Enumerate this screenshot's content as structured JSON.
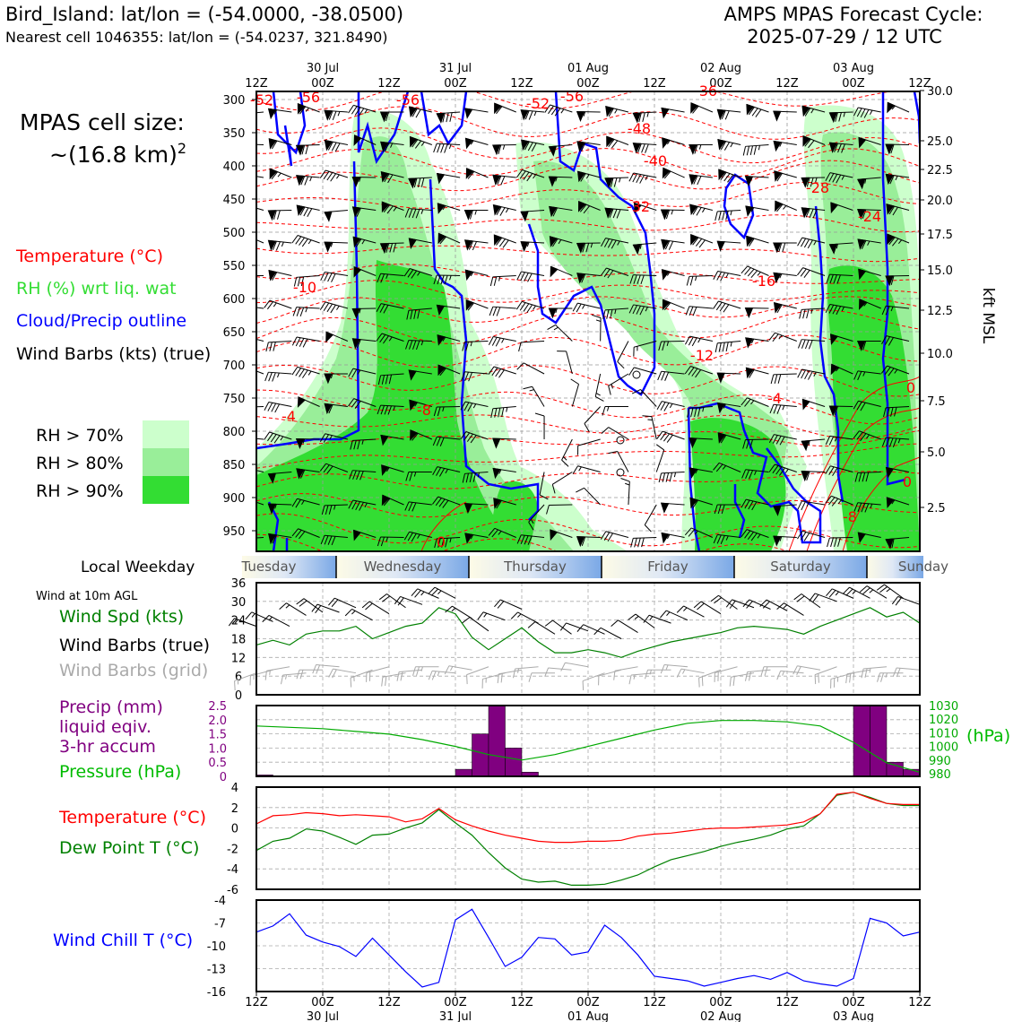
{
  "header": {
    "station_line": "Bird_Island: lat/lon = (-54.0000, -38.0500)",
    "cell_line": "Nearest cell 1046355: lat/lon = (-54.0237, 321.8490)",
    "cycle_line1": "AMPS MPAS Forecast Cycle:",
    "cycle_line2": "2025-07-29 / 12 UTC"
  },
  "cell_size": {
    "label": "MPAS cell size:",
    "value": "~(16.8 km)",
    "superscript": "2"
  },
  "legend": {
    "temperature": "Temperature (°C)",
    "rh": "RH (%) wrt liq. wat",
    "cloud": "Cloud/Precip outline",
    "wind": "Wind Barbs (kts) (true)",
    "rh70": "RH > 70%",
    "rh80": "RH > 80%",
    "rh90": "RH > 90%"
  },
  "colors": {
    "temperature": "#ff0000",
    "rh_label": "#33dd33",
    "cloud": "#0000ff",
    "rh70": "#ccffcc",
    "rh80": "#99ee99",
    "rh90": "#33dd33",
    "precip": "#800080",
    "pressure": "#00aa00",
    "dewpoint": "#008000",
    "windchill": "#0000ff",
    "grid_barb": "#aaaaaa"
  },
  "time_axis": {
    "ticks": [
      "12Z",
      "00Z",
      "12Z",
      "00Z",
      "12Z",
      "00Z",
      "12Z",
      "00Z",
      "12Z",
      "00Z",
      "12Z"
    ],
    "dates": [
      "30 Jul",
      "31 Jul",
      "01 Aug",
      "02 Aug",
      "03 Aug"
    ]
  },
  "weekday": {
    "label": "Local Weekday",
    "days": [
      "Tuesday",
      "Wednesday",
      "Thursday",
      "Friday",
      "Saturday",
      "Sunday"
    ]
  },
  "cross_section": {
    "pressure_levels": [
      "300",
      "350",
      "400",
      "450",
      "500",
      "550",
      "600",
      "650",
      "700",
      "750",
      "800",
      "850",
      "900",
      "950"
    ],
    "kft_levels": [
      "30.0",
      "25.0",
      "22.5",
      "20.0",
      "17.5",
      "15.0",
      "12.5",
      "10.0",
      "7.5",
      "5.0",
      "2.5"
    ],
    "kft_label": "kft MSL",
    "temp_labels": [
      "-52",
      "-56",
      "-56",
      "-52",
      "-56",
      "-48",
      "-40",
      "-36",
      "-32",
      "-28",
      "-24",
      "-16",
      "-12",
      "-10",
      "-8",
      "-4",
      "-4",
      "0",
      "0",
      "0",
      "-8"
    ]
  },
  "wind_panel": {
    "note": "Wind at 10m AGL",
    "label_speed": "Wind Spd (kts)",
    "label_barbs": "Wind Barbs (true)",
    "label_grid": "Wind Barbs (grid)",
    "yticks": [
      "36",
      "30",
      "24",
      "18",
      "12",
      "6",
      "0"
    ]
  },
  "precip_panel": {
    "label1": "Precip (mm)",
    "label2": "liquid eqiv.",
    "label3": "3-hr accum",
    "label_pressure": "Pressure (hPa)",
    "yticks_left": [
      "2.5",
      "2.0",
      "1.5",
      "1.0",
      "0.5",
      "0"
    ],
    "yticks_right": [
      "1030",
      "1020",
      "1010",
      "1000",
      "990",
      "980"
    ],
    "right_unit": "(hPa)"
  },
  "temp_panel": {
    "label_t": "Temperature (°C)",
    "label_td": "Dew Point T (°C)",
    "yticks": [
      "4",
      "2",
      "0",
      "-2",
      "-4",
      "-6"
    ]
  },
  "chill_panel": {
    "label": "Wind Chill T (°C)",
    "yticks": [
      "-4",
      "-7",
      "-10",
      "-13",
      "-16"
    ]
  },
  "chart_data": [
    {
      "type": "line",
      "title": "Wind at 10m AGL",
      "ylabel": "Wind Spd (kts)",
      "ylim": [
        0,
        36
      ],
      "x_hours": [
        0,
        3,
        6,
        9,
        12,
        15,
        18,
        21,
        24,
        27,
        30,
        33,
        36,
        39,
        42,
        45,
        48,
        51,
        54,
        57,
        60,
        63,
        66,
        69,
        72,
        75,
        78,
        81,
        84,
        87,
        90,
        93,
        96,
        99,
        102,
        105,
        108,
        111,
        114,
        117,
        120
      ],
      "series": [
        {
          "name": "Wind Spd (kts)",
          "values": [
            16,
            17.5,
            16,
            19.5,
            20.5,
            20.5,
            22,
            18,
            20,
            22,
            23,
            28,
            26,
            18.5,
            14.5,
            18,
            21.5,
            17,
            13.5,
            13.5,
            14.5,
            13.5,
            12,
            14,
            15.5,
            17,
            18,
            19,
            20,
            21.5,
            22,
            21.5,
            21,
            19.5,
            22,
            24,
            26,
            28,
            25,
            26.5,
            23
          ]
        }
      ]
    },
    {
      "type": "bar",
      "title": "Precip (mm) liquid eqiv. 3-hr accum",
      "ylim": [
        0,
        2.5
      ],
      "x_hours": [
        0,
        3,
        6,
        9,
        12,
        15,
        18,
        21,
        24,
        27,
        30,
        33,
        36,
        39,
        42,
        45,
        48,
        51,
        54,
        57,
        60,
        63,
        66,
        69,
        72,
        75,
        78,
        81,
        84,
        87,
        90,
        93,
        96,
        99,
        102,
        105,
        108,
        111,
        114,
        117
      ],
      "values": [
        0.05,
        0,
        0,
        0,
        0,
        0,
        0,
        0,
        0,
        0,
        0,
        0,
        0.25,
        1.5,
        2.5,
        1.0,
        0.15,
        0,
        0,
        0,
        0,
        0,
        0,
        0,
        0,
        0,
        0,
        0,
        0,
        0,
        0,
        0,
        0,
        0,
        0,
        0,
        2.5,
        2.5,
        0.5,
        0.25
      ]
    },
    {
      "type": "line",
      "title": "Pressure (hPa)",
      "ylim": [
        978,
        1030
      ],
      "x_hours": [
        0,
        6,
        12,
        18,
        24,
        30,
        36,
        42,
        48,
        54,
        60,
        66,
        72,
        78,
        84,
        90,
        96,
        102,
        108,
        114,
        120
      ],
      "series": [
        {
          "name": "Pressure (hPa)",
          "values": [
            1015,
            1014,
            1013,
            1011,
            1009,
            1005,
            1000,
            994,
            990,
            994,
            1000,
            1006,
            1012,
            1017,
            1019,
            1019,
            1018,
            1015,
            1003,
            988,
            981
          ]
        }
      ]
    },
    {
      "type": "line",
      "title": "Temperature / Dew Point",
      "ylim": [
        -6,
        4
      ],
      "x_hours": [
        0,
        3,
        6,
        9,
        12,
        15,
        18,
        21,
        24,
        27,
        30,
        33,
        36,
        39,
        42,
        45,
        48,
        51,
        54,
        57,
        60,
        63,
        66,
        69,
        72,
        75,
        78,
        81,
        84,
        87,
        90,
        93,
        96,
        99,
        102,
        105,
        108,
        111,
        114,
        117,
        120
      ],
      "series": [
        {
          "name": "Temperature (°C)",
          "values": [
            0.4,
            1.2,
            1.3,
            1.5,
            1.4,
            1.2,
            1.3,
            1.2,
            1.1,
            0.6,
            0.9,
            1.9,
            0.8,
            0.2,
            -0.3,
            -0.7,
            -1.0,
            -1.3,
            -1.4,
            -1.4,
            -1.3,
            -1.3,
            -1.2,
            -0.8,
            -0.6,
            -0.5,
            -0.3,
            -0.1,
            0.0,
            0.0,
            0.1,
            0.2,
            0.3,
            0.6,
            1.4,
            3.3,
            3.5,
            2.9,
            2.4,
            2.3,
            2.3
          ]
        },
        {
          "name": "Dew Point T (°C)",
          "values": [
            -2.2,
            -1.3,
            -1.0,
            -0.1,
            -0.3,
            -0.9,
            -1.6,
            -0.7,
            -0.6,
            0.0,
            0.5,
            1.8,
            0.5,
            -0.7,
            -2.4,
            -3.9,
            -5.0,
            -5.3,
            -5.2,
            -5.6,
            -5.6,
            -5.5,
            -5.1,
            -4.6,
            -3.8,
            -3.1,
            -2.7,
            -2.3,
            -1.8,
            -1.4,
            -1.1,
            -0.7,
            -0.1,
            0.2,
            1.4,
            3.2,
            3.5,
            3.0,
            2.4,
            2.2,
            2.2
          ]
        }
      ]
    },
    {
      "type": "line",
      "title": "Wind Chill T (°C)",
      "ylim": [
        -16,
        -4
      ],
      "x_hours": [
        0,
        3,
        6,
        9,
        12,
        15,
        18,
        21,
        24,
        27,
        30,
        33,
        36,
        39,
        42,
        45,
        48,
        51,
        54,
        57,
        60,
        63,
        66,
        69,
        72,
        75,
        78,
        81,
        84,
        87,
        90,
        93,
        96,
        99,
        102,
        105,
        108,
        111,
        114,
        117,
        120
      ],
      "series": [
        {
          "name": "Wind Chill T (°C)",
          "values": [
            -8.2,
            -7.4,
            -5.8,
            -8.6,
            -9.5,
            -10.1,
            -11.4,
            -9.0,
            -11.2,
            -13.4,
            -15.4,
            -14.8,
            -6.6,
            -5.2,
            -8.9,
            -12.7,
            -11.5,
            -8.9,
            -9.1,
            -11.2,
            -10.8,
            -7.3,
            -8.9,
            -11.2,
            -14.0,
            -14.3,
            -14.6,
            -15.3,
            -14.8,
            -14.3,
            -13.9,
            -14.4,
            -13.5,
            -14.6,
            -15.0,
            -15.3,
            -14.3,
            -6.4,
            -7.0,
            -8.7,
            -8.2
          ]
        }
      ]
    }
  ]
}
